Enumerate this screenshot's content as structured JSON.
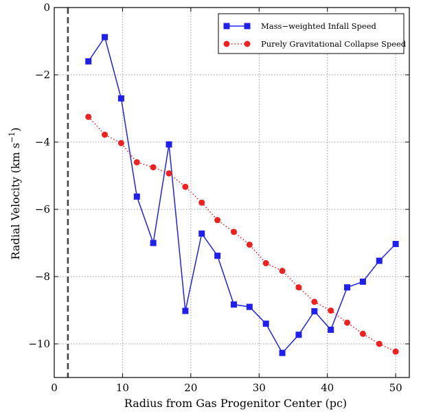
{
  "chart_data": {
    "type": "line",
    "title": "",
    "xlabel": "Radius from Gas Progenitor Center (pc)",
    "ylabel_main": "Radial Velocity (km s",
    "ylabel_sup": "−1",
    "ylabel_close": ")",
    "xlim": [
      0,
      52
    ],
    "ylim": [
      -11,
      0
    ],
    "xticks": [
      0,
      10,
      20,
      30,
      40,
      50
    ],
    "xtick_labels": [
      "0",
      "10",
      "20",
      "30",
      "40",
      "50"
    ],
    "yticks": [
      0,
      -2,
      -4,
      -6,
      -8,
      -10
    ],
    "ytick_labels": [
      "0",
      "−2",
      "−4",
      "−6",
      "−8",
      "−10"
    ],
    "grid": true,
    "legend_position": "top-right",
    "vertical_reference_line_x": 2,
    "series": [
      {
        "name": "Mass−weighted Infall Speed",
        "color": "#2020ee",
        "marker": "square",
        "linestyle": "solid",
        "x": [
          5,
          7.4,
          9.8,
          12.1,
          14.5,
          16.8,
          19.2,
          21.6,
          23.9,
          26.3,
          28.6,
          31,
          33.4,
          35.8,
          38.1,
          40.5,
          42.9,
          45.2,
          47.6,
          50
        ],
        "y": [
          -1.6,
          -0.88,
          -2.7,
          -5.62,
          -7,
          -4.07,
          -9.02,
          -6.72,
          -7.38,
          -8.83,
          -8.9,
          -9.4,
          -10.27,
          -9.73,
          -9.03,
          -9.58,
          -8.32,
          -8.15,
          -7.53,
          -7.03
        ]
      },
      {
        "name": "Purely Gravitational Collapse Speed",
        "color": "#ee2020",
        "marker": "circle",
        "linestyle": "dotted",
        "x": [
          5,
          7.4,
          9.8,
          12.1,
          14.5,
          16.8,
          19.2,
          21.6,
          23.9,
          26.3,
          28.6,
          31,
          33.4,
          35.8,
          38.1,
          40.5,
          42.9,
          45.2,
          47.6,
          50
        ],
        "y": [
          -3.25,
          -3.78,
          -4.03,
          -4.6,
          -4.75,
          -4.93,
          -5.33,
          -5.8,
          -6.32,
          -6.67,
          -7.05,
          -7.6,
          -7.83,
          -8.32,
          -8.75,
          -9.01,
          -9.37,
          -9.7,
          -10,
          -10.23
        ]
      }
    ]
  }
}
